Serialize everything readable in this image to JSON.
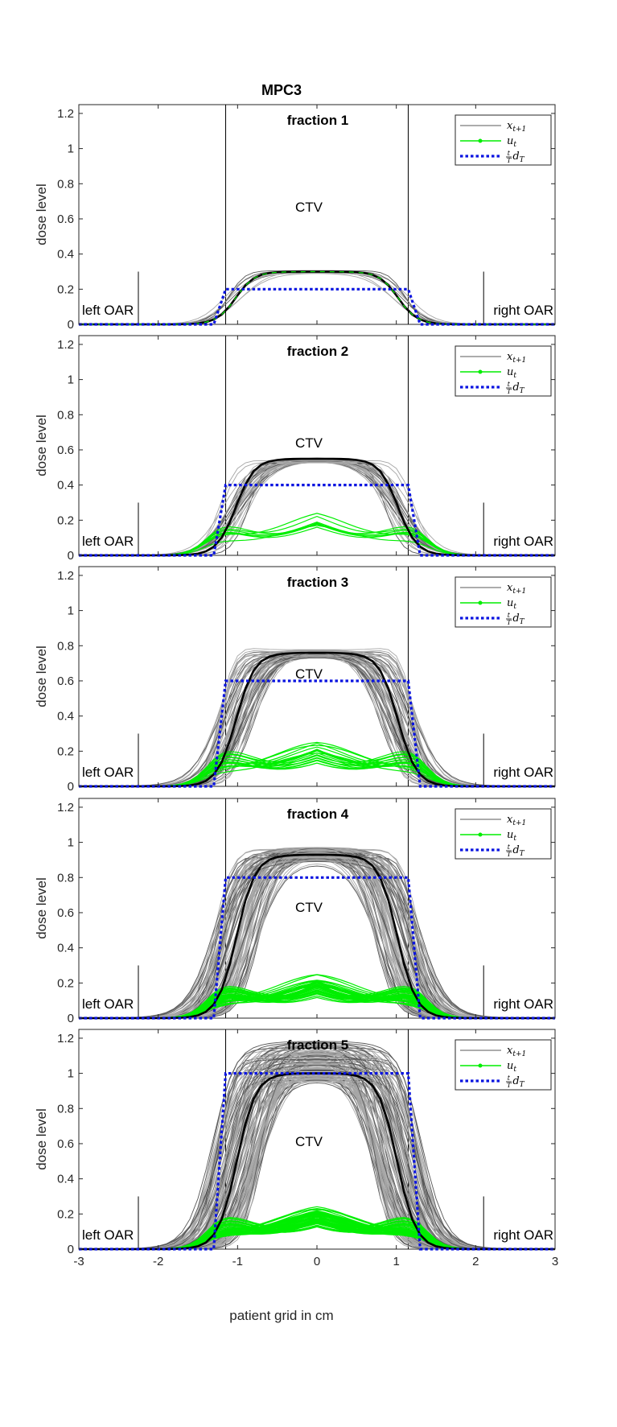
{
  "colors": {
    "state_light": "#a6a6a6",
    "state_dark": "#595959",
    "mean": "#000000",
    "control": "#00ee00",
    "target": "#0a14e0"
  },
  "chart_data": {
    "type": "line",
    "title": "MPC3",
    "xlabel": "patient grid in cm",
    "ylabel": "dose level",
    "xlim": [
      -3,
      3
    ],
    "ylim": [
      0,
      1.25
    ],
    "xticks": [
      "-3",
      "-2",
      "-1",
      "0",
      "1",
      "2",
      "3"
    ],
    "yticks": [
      "0",
      "0.2",
      "0.4",
      "0.6",
      "0.8",
      "1",
      "1.2"
    ],
    "legend": {
      "position": "top-right",
      "entries": [
        "x_{t+1}",
        "u_t",
        "(t/T) d_T"
      ]
    },
    "region_labels": {
      "left": "left OAR",
      "center": "CTV",
      "right": "right OAR"
    },
    "boundaries": {
      "ctv_edges": [
        -1.15,
        1.15
      ],
      "oar_edges": [
        -2.25,
        2.1
      ]
    },
    "panels": [
      {
        "title": "fraction  1",
        "target_level": 0.2,
        "mean_peak": 0.33,
        "mean_center": 0.3,
        "control_level": 0.33,
        "state_max": 0.34
      },
      {
        "title": "fraction  2",
        "target_level": 0.4,
        "mean_peak": 0.6,
        "mean_center": 0.55,
        "control_level": 0.25,
        "state_max": 0.6
      },
      {
        "title": "fraction  3",
        "target_level": 0.6,
        "mean_peak": 0.82,
        "mean_center": 0.76,
        "control_level": 0.27,
        "state_max": 0.84
      },
      {
        "title": "fraction  4",
        "target_level": 0.8,
        "mean_peak": 0.98,
        "mean_center": 0.93,
        "control_level": 0.25,
        "state_max": 1.03
      },
      {
        "title": "fraction  5",
        "target_level": 1.0,
        "mean_peak": 1.04,
        "mean_center": 1.0,
        "control_level": 0.24,
        "state_max": 1.24
      }
    ]
  }
}
